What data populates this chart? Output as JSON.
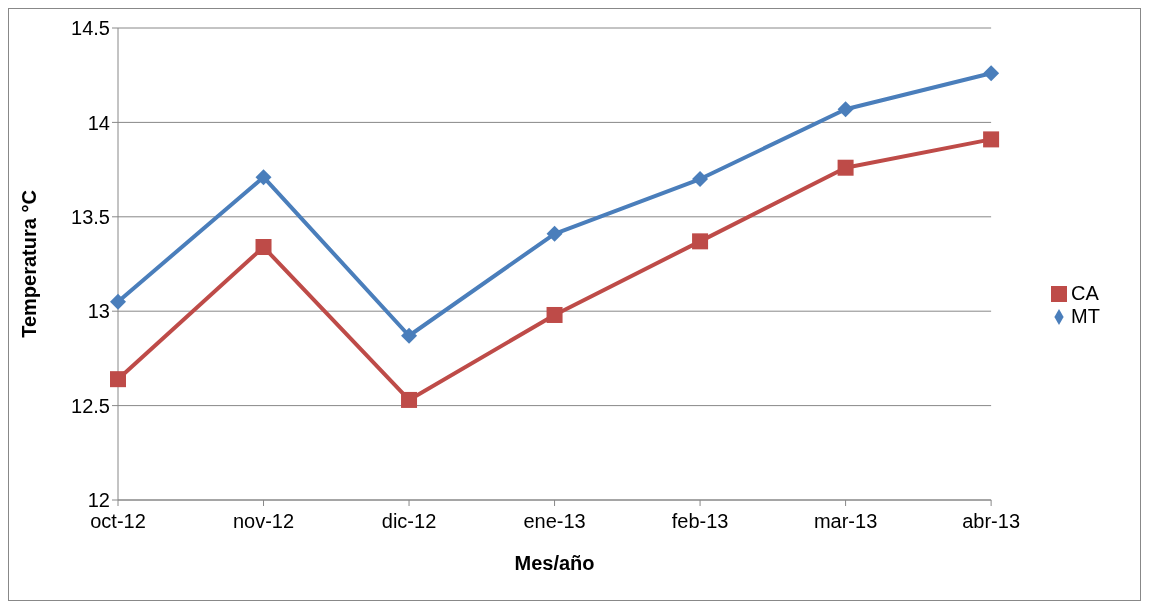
{
  "chart_data": {
    "type": "line",
    "xlabel": "Mes/año",
    "ylabel": "Temperatura °C",
    "categories": [
      "oct-12",
      "nov-12",
      "dic-12",
      "ene-13",
      "feb-13",
      "mar-13",
      "abr-13"
    ],
    "series": [
      {
        "name": "MT",
        "color": "#4a7ebb",
        "marker": "diamond",
        "values": [
          13.05,
          13.71,
          12.87,
          13.41,
          13.7,
          14.07,
          14.26
        ]
      },
      {
        "name": "CA",
        "color": "#be4b48",
        "marker": "square",
        "values": [
          12.64,
          13.34,
          12.53,
          12.98,
          13.37,
          13.76,
          13.91
        ]
      }
    ],
    "ylim": [
      12,
      14.5
    ],
    "yticks": [
      12,
      12.5,
      13,
      13.5,
      14,
      14.5
    ],
    "grid": "y",
    "legend": "right"
  }
}
